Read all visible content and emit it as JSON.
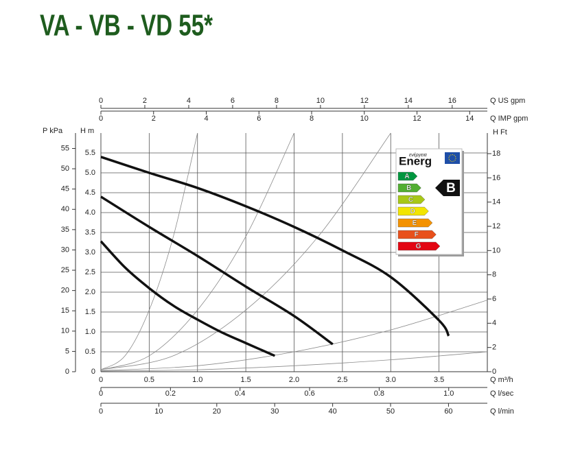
{
  "chart_data": {
    "type": "line",
    "title": "VA - VB - VD 55*",
    "xlabel": "Q m³/h",
    "ylabel": "H m",
    "xlim": [
      0,
      4
    ],
    "xticks": [
      0,
      0.5,
      {
        "value": 1,
        "label": "1.0"
      },
      1.5,
      {
        "value": 2,
        "label": "2.0"
      },
      2.5,
      {
        "value": 3,
        "label": "3.0"
      },
      3.5
    ],
    "ylim": [
      0,
      6
    ],
    "yticks": [
      0,
      0.5,
      {
        "value": 1,
        "label": "1.0"
      },
      1.5,
      {
        "value": 2,
        "label": "2.0"
      },
      2.5,
      {
        "value": 3,
        "label": "3.0"
      },
      3.5,
      {
        "value": 4,
        "label": "4.0"
      },
      4.5,
      {
        "value": 5,
        "label": "5.0"
      },
      5.5
    ],
    "grid": true,
    "secondary_axes": {
      "p_kpa": {
        "label": "P kPa",
        "lim": [
          0,
          58.8
        ],
        "ticks": [
          0,
          5,
          10,
          15,
          20,
          25,
          30,
          35,
          40,
          45,
          50,
          55
        ]
      },
      "h_ft": {
        "label": "H Ft",
        "lim": [
          0,
          19.7
        ],
        "ticks": [
          0,
          2,
          4,
          6,
          8,
          10,
          12,
          14,
          16,
          18
        ]
      },
      "q_us_gpm": {
        "label": "Q US gpm",
        "lim": [
          0,
          17.6
        ],
        "ticks": [
          0,
          2,
          4,
          6,
          8,
          10,
          12,
          14,
          16
        ]
      },
      "q_imp_gpm": {
        "label": "Q IMP gpm",
        "lim": [
          0,
          14.67
        ],
        "ticks": [
          0,
          2,
          4,
          6,
          8,
          10,
          12,
          14
        ]
      },
      "q_l_sec": {
        "label": "Q l/sec",
        "lim": [
          0,
          1.111
        ],
        "ticks": [
          0,
          0.2,
          0.4,
          0.6,
          0.8,
          {
            "value": 1,
            "label": "1.0"
          }
        ]
      },
      "q_l_min": {
        "label": "Q l/min",
        "lim": [
          0,
          66.7
        ],
        "ticks": [
          0,
          10,
          20,
          30,
          40,
          50,
          60
        ]
      }
    },
    "series": [
      {
        "color": "#111111",
        "x": [
          0,
          0.25,
          0.5,
          0.75,
          1.0,
          1.25,
          1.5,
          1.8
        ],
        "values": [
          3.28,
          2.62,
          2.1,
          1.66,
          1.31,
          0.99,
          0.72,
          0.4
        ]
      },
      {
        "color": "#111111",
        "x": [
          0,
          0.5,
          1.0,
          1.5,
          2.0,
          2.4
        ],
        "values": [
          4.4,
          3.64,
          2.91,
          2.14,
          1.4,
          0.69
        ]
      },
      {
        "color": "#111111",
        "x": [
          0,
          0.5,
          1.0,
          1.5,
          2.0,
          2.5,
          3.0,
          3.5,
          3.6
        ],
        "values": [
          5.4,
          5.0,
          4.62,
          4.16,
          3.64,
          3.05,
          2.38,
          1.29,
          0.9
        ]
      }
    ],
    "system_curves": {
      "color": "#8a8a8a",
      "curves": [
        {
          "x": [
            0,
            0.25,
            0.5,
            0.75,
            1.0
          ],
          "values": [
            0.05,
            0.4,
            1.55,
            3.4,
            6
          ]
        },
        {
          "x": [
            0,
            0.5,
            1.0,
            1.5,
            2.0
          ],
          "values": [
            0.05,
            0.4,
            1.55,
            3.4,
            6
          ]
        },
        {
          "x": [
            0,
            0.75,
            1.5,
            2.25,
            3.0
          ],
          "values": [
            0.05,
            0.4,
            1.55,
            3.4,
            6
          ]
        },
        {
          "x": [
            0,
            1,
            2,
            3,
            4
          ],
          "values": [
            0.03,
            0.15,
            0.5,
            1.05,
            1.8
          ]
        },
        {
          "x": [
            0,
            1,
            2,
            3,
            4
          ],
          "values": [
            0.02,
            0.05,
            0.15,
            0.3,
            0.5
          ]
        }
      ]
    },
    "energy_label": {
      "logo_small": "ενέργεια",
      "logo": "Energ",
      "classes": [
        "A",
        "B",
        "C",
        "D",
        "E",
        "F",
        "G"
      ],
      "class_colors": [
        "#00963f",
        "#52ae32",
        "#a8c818",
        "#f2e500",
        "#f39200",
        "#e8501c",
        "#e30613"
      ],
      "rating": "B"
    }
  }
}
